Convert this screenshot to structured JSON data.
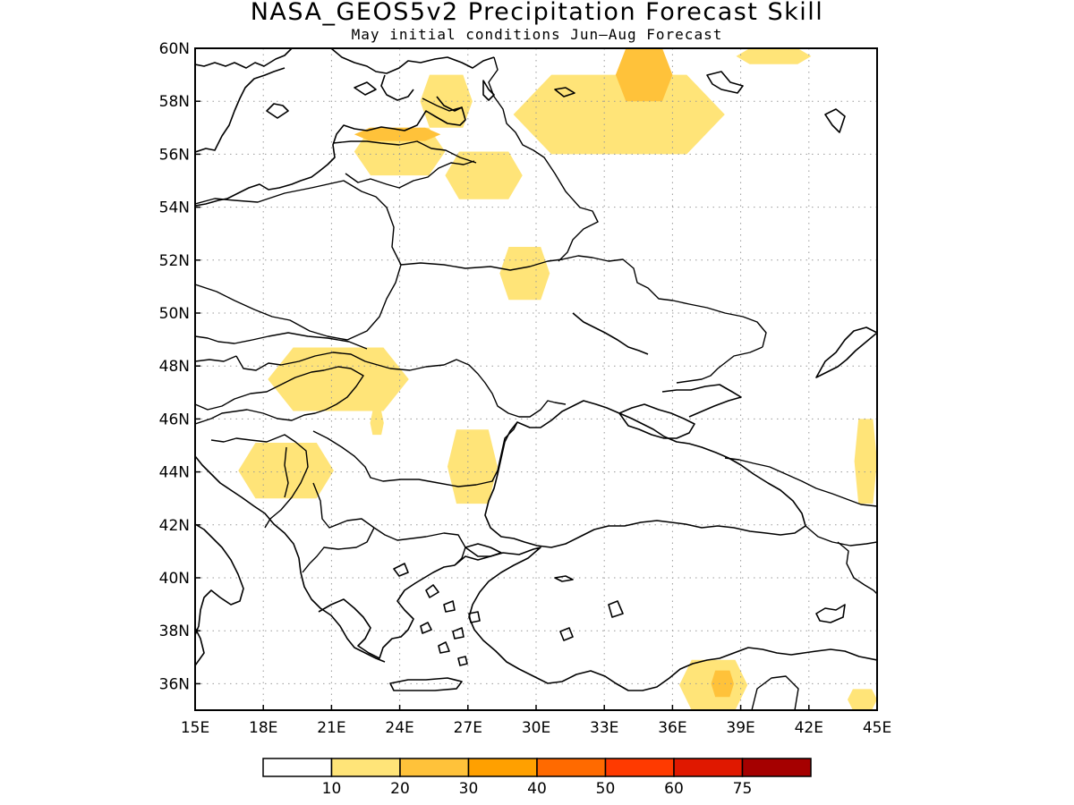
{
  "title": "NASA_GEOS5v2 Precipitation Forecast Skill",
  "subtitle": "May initial conditions  Jun—Aug Forecast",
  "map": {
    "lon_range": [
      15,
      45
    ],
    "lat_range": [
      35,
      60
    ],
    "lon_ticks": [
      "15E",
      "18E",
      "21E",
      "24E",
      "27E",
      "30E",
      "33E",
      "36E",
      "39E",
      "42E",
      "45E"
    ],
    "lat_ticks": [
      "36N",
      "38N",
      "40N",
      "42N",
      "44N",
      "46N",
      "48N",
      "50N",
      "52N",
      "54N",
      "56N",
      "58N",
      "60N"
    ],
    "gridlines": true
  },
  "colorbar": {
    "colors": [
      "#ffffff",
      "#ffe478",
      "#ffc23a",
      "#ffa000",
      "#ff6a00",
      "#ff3a00",
      "#e01800",
      "#a50000"
    ],
    "labels": [
      "10",
      "20",
      "30",
      "40",
      "50",
      "60",
      "75"
    ]
  },
  "skill_regions": [
    {
      "level": 1,
      "lon": [
        24.9,
        27.2
      ],
      "lat": [
        57.0,
        59.0
      ]
    },
    {
      "level": 1,
      "lon": [
        22.0,
        26.0
      ],
      "lat": [
        55.2,
        57.0
      ]
    },
    {
      "level": 2,
      "lon": [
        22.0,
        25.8
      ],
      "lat": [
        56.5,
        57.0
      ]
    },
    {
      "level": 1,
      "lon": [
        26.0,
        29.4
      ],
      "lat": [
        54.3,
        56.1
      ]
    },
    {
      "level": 1,
      "lon": [
        29.0,
        38.3
      ],
      "lat": [
        56.0,
        59.0
      ]
    },
    {
      "level": 2,
      "lon": [
        33.5,
        36.0
      ],
      "lat": [
        58.0,
        60.0
      ]
    },
    {
      "level": 1,
      "lon": [
        38.8,
        42.1
      ],
      "lat": [
        59.4,
        60.0
      ]
    },
    {
      "level": 1,
      "lon": [
        28.4,
        30.6
      ],
      "lat": [
        50.5,
        52.5
      ]
    },
    {
      "level": 1,
      "lon": [
        18.2,
        24.4
      ],
      "lat": [
        46.3,
        48.7
      ]
    },
    {
      "level": 1,
      "lon": [
        22.7,
        23.3
      ],
      "lat": [
        45.4,
        46.3
      ]
    },
    {
      "level": 1,
      "lon": [
        16.9,
        21.1
      ],
      "lat": [
        43.0,
        45.1
      ]
    },
    {
      "level": 1,
      "lon": [
        26.1,
        28.3
      ],
      "lat": [
        42.8,
        45.6
      ]
    },
    {
      "level": 1,
      "lon": [
        44.0,
        45.0
      ],
      "lat": [
        42.8,
        46.0
      ]
    },
    {
      "level": 1,
      "lon": [
        36.3,
        39.3
      ],
      "lat": [
        35.0,
        36.9
      ]
    },
    {
      "level": 2,
      "lon": [
        37.7,
        38.7
      ],
      "lat": [
        35.5,
        36.5
      ]
    },
    {
      "level": 1,
      "lon": [
        43.7,
        45.0
      ],
      "lat": [
        35.0,
        35.8
      ]
    }
  ]
}
